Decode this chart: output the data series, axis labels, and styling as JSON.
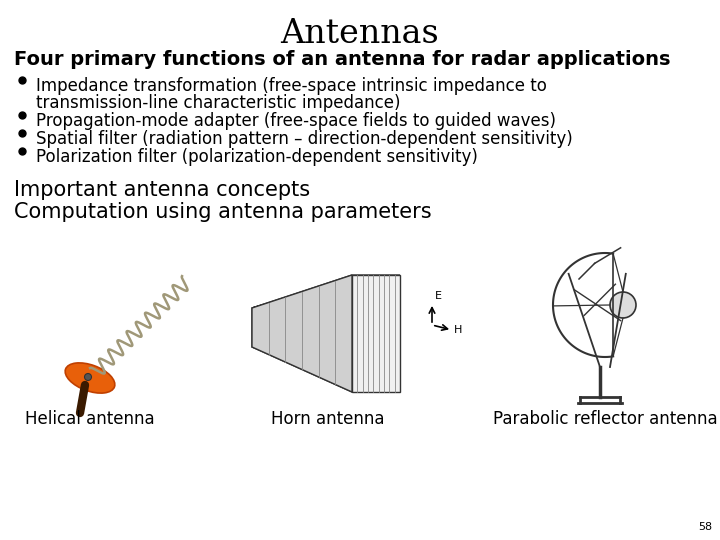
{
  "title": "Antennas",
  "subtitle": "Four primary functions of an antenna for radar applications",
  "bullet1_line1": "Impedance transformation (free-space intrinsic impedance to",
  "bullet1_line2": "transmission-line characteristic impedance)",
  "bullet2": "Propagation-mode adapter (free-space fields to guided waves)",
  "bullet3": "Spatial filter (radiation pattern – direction-dependent sensitivity)",
  "bullet4": "Polarization filter (polarization-dependent sensitivity)",
  "line1": "Important antenna concepts",
  "line2": "Computation using antenna parameters",
  "caption1": "Helical antenna",
  "caption2": "Horn antenna",
  "caption3": "Parabolic reflector antenna",
  "page_number": "58",
  "bg_color": "#ffffff",
  "text_color": "#000000",
  "title_fontsize": 24,
  "subtitle_fontsize": 14,
  "bullet_fontsize": 12,
  "body_fontsize": 15,
  "caption_fontsize": 12
}
